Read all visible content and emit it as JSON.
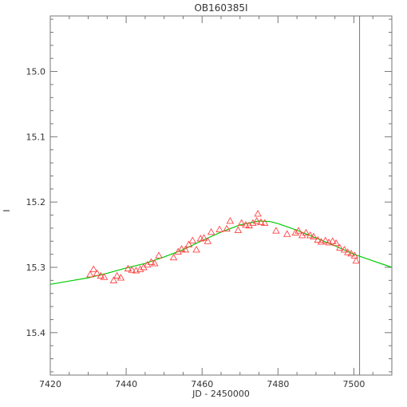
{
  "chart_data": {
    "type": "scatter",
    "title": "OB160385I",
    "xlabel": "JD - 2450000",
    "ylabel": "I",
    "xlim": [
      7420,
      7510
    ],
    "ylim": [
      15.465,
      14.915
    ],
    "y_inverted": true,
    "x_major_ticks": [
      7420,
      7440,
      7460,
      7480,
      7500
    ],
    "x_tick_labels": [
      "7420",
      "7440",
      "7460",
      "7480",
      "7500"
    ],
    "y_major_ticks": [
      15.0,
      15.1,
      15.2,
      15.3,
      15.4
    ],
    "y_tick_labels": [
      "15.0",
      "15.1",
      "15.2",
      "15.3",
      "15.4"
    ],
    "grid": false,
    "vertical_line_x": 7501.5,
    "series": [
      {
        "kind": "points",
        "marker": "open-triangle",
        "color": "#ff4444",
        "points": [
          [
            7430.5,
            15.311
          ],
          [
            7431.4,
            15.303
          ],
          [
            7432.3,
            15.309
          ],
          [
            7433.3,
            15.313
          ],
          [
            7434.2,
            15.315
          ],
          [
            7436.7,
            15.32
          ],
          [
            7437.6,
            15.313
          ],
          [
            7438.6,
            15.316
          ],
          [
            7440.5,
            15.302
          ],
          [
            7441.5,
            15.304
          ],
          [
            7442.6,
            15.305
          ],
          [
            7443.7,
            15.303
          ],
          [
            7444.6,
            15.3
          ],
          [
            7445.6,
            15.296
          ],
          [
            7446.6,
            15.292
          ],
          [
            7447.5,
            15.294
          ],
          [
            7448.6,
            15.282
          ],
          [
            7452.5,
            15.285
          ],
          [
            7453.7,
            15.276
          ],
          [
            7454.6,
            15.272
          ],
          [
            7455.6,
            15.273
          ],
          [
            7456.5,
            15.265
          ],
          [
            7457.5,
            15.259
          ],
          [
            7458.5,
            15.273
          ],
          [
            7459.6,
            15.256
          ],
          [
            7460.5,
            15.255
          ],
          [
            7461.5,
            15.26
          ],
          [
            7462.4,
            15.246
          ],
          [
            7464.6,
            15.242
          ],
          [
            7466.5,
            15.241
          ],
          [
            7467.4,
            15.229
          ],
          [
            7469.5,
            15.243
          ],
          [
            7470.4,
            15.232
          ],
          [
            7471.5,
            15.235
          ],
          [
            7472.4,
            15.236
          ],
          [
            7473.4,
            15.232
          ],
          [
            7474.4,
            15.229
          ],
          [
            7474.7,
            15.218
          ],
          [
            7475.5,
            15.231
          ],
          [
            7476.5,
            15.232
          ],
          [
            7479.5,
            15.244
          ],
          [
            7482.4,
            15.249
          ],
          [
            7484.6,
            15.247
          ],
          [
            7485.4,
            15.244
          ],
          [
            7486.4,
            15.251
          ],
          [
            7487.4,
            15.247
          ],
          [
            7488.5,
            15.251
          ],
          [
            7489.4,
            15.253
          ],
          [
            7490.5,
            15.258
          ],
          [
            7491.4,
            15.261
          ],
          [
            7492.5,
            15.259
          ],
          [
            7493.4,
            15.262
          ],
          [
            7494.4,
            15.26
          ],
          [
            7495.3,
            15.263
          ],
          [
            7496.3,
            15.27
          ],
          [
            7497.5,
            15.273
          ],
          [
            7498.4,
            15.277
          ],
          [
            7499.3,
            15.279
          ],
          [
            7500.2,
            15.282
          ],
          [
            7500.6,
            15.29
          ]
        ]
      },
      {
        "kind": "model",
        "color": "#00cc00",
        "x": [
          7420,
          7425,
          7430,
          7435,
          7440,
          7445,
          7450,
          7455,
          7460,
          7465,
          7470,
          7475,
          7478,
          7480,
          7485,
          7490,
          7495,
          7500,
          7505,
          7510
        ],
        "y": [
          15.326,
          15.321,
          15.316,
          15.309,
          15.301,
          15.294,
          15.284,
          15.273,
          15.259,
          15.246,
          15.235,
          15.229,
          15.23,
          15.233,
          15.243,
          15.255,
          15.267,
          15.28,
          15.29,
          15.3
        ]
      }
    ]
  }
}
